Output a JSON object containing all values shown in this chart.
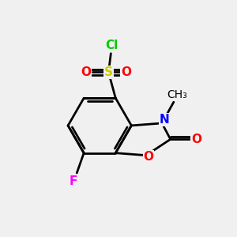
{
  "bg_color": "#f0f0f0",
  "bond_color": "#000000",
  "bond_width": 2.0,
  "atom_colors": {
    "S": "#cccc00",
    "O": "#ff0000",
    "N": "#0000ff",
    "F": "#ff00ff",
    "Cl": "#00cc00",
    "C": "#000000"
  },
  "font_size": 11
}
